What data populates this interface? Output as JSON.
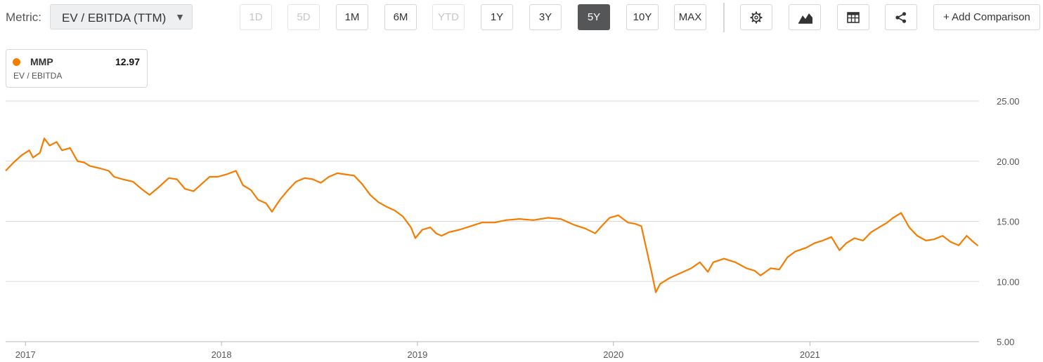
{
  "toolbar": {
    "metric_label": "Metric:",
    "metric_value": "EV / EBITDA (TTM)",
    "periods": [
      {
        "label": "1D",
        "state": "disabled"
      },
      {
        "label": "5D",
        "state": "disabled"
      },
      {
        "label": "1M",
        "state": "normal"
      },
      {
        "label": "6M",
        "state": "normal"
      },
      {
        "label": "YTD",
        "state": "disabled"
      },
      {
        "label": "1Y",
        "state": "normal"
      },
      {
        "label": "3Y",
        "state": "normal"
      },
      {
        "label": "5Y",
        "state": "active"
      },
      {
        "label": "10Y",
        "state": "normal"
      },
      {
        "label": "MAX",
        "state": "normal"
      }
    ],
    "icons": [
      "gear-icon",
      "chart-type-icon",
      "table-icon",
      "share-icon"
    ],
    "add_comparison": "+ Add Comparison"
  },
  "legend": {
    "ticker": "MMP",
    "value": "12.97",
    "metric": "EV / EBITDA",
    "color": "#f57c00"
  },
  "chart_data": {
    "type": "line",
    "title": "",
    "xlabel": "",
    "ylabel": "",
    "ylim": [
      5,
      25
    ],
    "yticks": [
      "25.00",
      "20.00",
      "15.00",
      "10.00",
      "5.00"
    ],
    "xticks": [
      "2017",
      "2018",
      "2019",
      "2020",
      "2021"
    ],
    "grid": true,
    "legend_position": "top-left",
    "series": [
      {
        "name": "MMP",
        "color": "#f57c00",
        "points": [
          [
            "2016-11-25",
            19.2
          ],
          [
            "2016-12-10",
            19.9
          ],
          [
            "2016-12-25",
            20.5
          ],
          [
            "2017-01-08",
            20.9
          ],
          [
            "2017-01-15",
            20.3
          ],
          [
            "2017-01-28",
            20.7
          ],
          [
            "2017-02-05",
            21.9
          ],
          [
            "2017-02-15",
            21.3
          ],
          [
            "2017-02-28",
            21.6
          ],
          [
            "2017-03-10",
            20.9
          ],
          [
            "2017-03-25",
            21.1
          ],
          [
            "2017-04-08",
            20.0
          ],
          [
            "2017-04-20",
            19.9
          ],
          [
            "2017-05-01",
            19.6
          ],
          [
            "2017-05-20",
            19.4
          ],
          [
            "2017-06-05",
            19.2
          ],
          [
            "2017-06-15",
            18.7
          ],
          [
            "2017-07-01",
            18.5
          ],
          [
            "2017-07-20",
            18.3
          ],
          [
            "2017-08-05",
            17.7
          ],
          [
            "2017-08-20",
            17.2
          ],
          [
            "2017-09-05",
            17.8
          ],
          [
            "2017-09-25",
            18.6
          ],
          [
            "2017-10-10",
            18.5
          ],
          [
            "2017-10-25",
            17.7
          ],
          [
            "2017-11-10",
            17.5
          ],
          [
            "2017-11-25",
            18.1
          ],
          [
            "2017-12-10",
            18.7
          ],
          [
            "2017-12-25",
            18.7
          ],
          [
            "2018-01-10",
            18.9
          ],
          [
            "2018-01-28",
            19.2
          ],
          [
            "2018-02-10",
            18.0
          ],
          [
            "2018-02-25",
            17.6
          ],
          [
            "2018-03-10",
            16.8
          ],
          [
            "2018-03-25",
            16.5
          ],
          [
            "2018-04-05",
            15.8
          ],
          [
            "2018-04-20",
            16.8
          ],
          [
            "2018-05-05",
            17.6
          ],
          [
            "2018-05-20",
            18.3
          ],
          [
            "2018-06-05",
            18.6
          ],
          [
            "2018-06-20",
            18.5
          ],
          [
            "2018-07-05",
            18.2
          ],
          [
            "2018-07-20",
            18.7
          ],
          [
            "2018-08-05",
            19.0
          ],
          [
            "2018-08-20",
            18.9
          ],
          [
            "2018-09-05",
            18.8
          ],
          [
            "2018-09-20",
            18.1
          ],
          [
            "2018-10-05",
            17.2
          ],
          [
            "2018-10-20",
            16.6
          ],
          [
            "2018-11-05",
            16.2
          ],
          [
            "2018-11-20",
            15.9
          ],
          [
            "2018-12-05",
            15.4
          ],
          [
            "2018-12-20",
            14.5
          ],
          [
            "2018-12-28",
            13.6
          ],
          [
            "2019-01-10",
            14.3
          ],
          [
            "2019-01-25",
            14.5
          ],
          [
            "2019-02-05",
            14.0
          ],
          [
            "2019-02-15",
            13.8
          ],
          [
            "2019-03-01",
            14.1
          ],
          [
            "2019-03-20",
            14.3
          ],
          [
            "2019-04-10",
            14.6
          ],
          [
            "2019-05-01",
            14.9
          ],
          [
            "2019-05-25",
            14.9
          ],
          [
            "2019-06-15",
            15.1
          ],
          [
            "2019-07-10",
            15.2
          ],
          [
            "2019-08-05",
            15.1
          ],
          [
            "2019-09-01",
            15.3
          ],
          [
            "2019-09-25",
            15.2
          ],
          [
            "2019-10-20",
            14.7
          ],
          [
            "2019-11-10",
            14.4
          ],
          [
            "2019-11-28",
            14.0
          ],
          [
            "2019-12-10",
            14.6
          ],
          [
            "2019-12-25",
            15.3
          ],
          [
            "2020-01-10",
            15.5
          ],
          [
            "2020-01-28",
            14.9
          ],
          [
            "2020-02-10",
            14.8
          ],
          [
            "2020-02-22",
            14.6
          ],
          [
            "2020-03-02",
            12.8
          ],
          [
            "2020-03-12",
            10.8
          ],
          [
            "2020-03-20",
            9.1
          ],
          [
            "2020-03-28",
            9.8
          ],
          [
            "2020-04-15",
            10.3
          ],
          [
            "2020-05-05",
            10.7
          ],
          [
            "2020-05-25",
            11.1
          ],
          [
            "2020-06-10",
            11.6
          ],
          [
            "2020-06-25",
            10.8
          ],
          [
            "2020-07-05",
            11.6
          ],
          [
            "2020-07-25",
            11.9
          ],
          [
            "2020-08-15",
            11.6
          ],
          [
            "2020-09-05",
            11.1
          ],
          [
            "2020-09-20",
            10.9
          ],
          [
            "2020-10-01",
            10.5
          ],
          [
            "2020-10-20",
            11.1
          ],
          [
            "2020-11-05",
            11.0
          ],
          [
            "2020-11-20",
            12.0
          ],
          [
            "2020-12-05",
            12.5
          ],
          [
            "2020-12-25",
            12.8
          ],
          [
            "2021-01-10",
            13.2
          ],
          [
            "2021-01-25",
            13.4
          ],
          [
            "2021-02-10",
            13.7
          ],
          [
            "2021-02-25",
            12.6
          ],
          [
            "2021-03-10",
            13.2
          ],
          [
            "2021-03-25",
            13.6
          ],
          [
            "2021-04-10",
            13.4
          ],
          [
            "2021-04-25",
            14.1
          ],
          [
            "2021-05-10",
            14.5
          ],
          [
            "2021-05-25",
            14.9
          ],
          [
            "2021-06-05",
            15.3
          ],
          [
            "2021-06-20",
            15.7
          ],
          [
            "2021-07-05",
            14.5
          ],
          [
            "2021-07-20",
            13.8
          ],
          [
            "2021-08-05",
            13.4
          ],
          [
            "2021-08-20",
            13.5
          ],
          [
            "2021-09-05",
            13.8
          ],
          [
            "2021-09-20",
            13.3
          ],
          [
            "2021-10-05",
            13.0
          ],
          [
            "2021-10-20",
            13.8
          ],
          [
            "2021-11-01",
            13.3
          ],
          [
            "2021-11-10",
            12.97
          ]
        ]
      }
    ]
  }
}
